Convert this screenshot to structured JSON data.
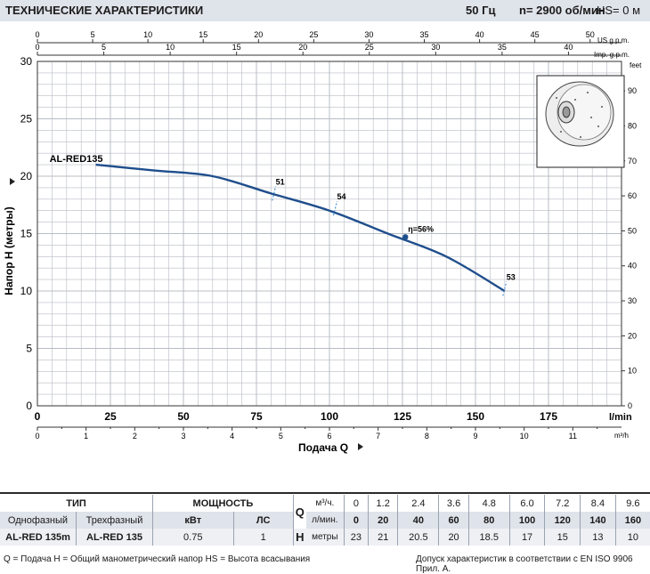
{
  "header": {
    "title": "ТЕХНИЧЕСКИЕ ХАРАКТЕРИСТИКИ",
    "freq": "50 Гц",
    "speed": "n= 2900  об/мин",
    "hs": "HS= 0 м"
  },
  "chart_data": {
    "type": "line",
    "ylabel": "Напор H  (метры)",
    "xlabel": "Подача Q",
    "x_unit_main": "l/min",
    "x_unit_m3h": "m³/h",
    "x_unit_usgpm": "US g.p.m.",
    "x_unit_impgpm": "Imp. g.p.m.",
    "y_unit_feet": "feet",
    "xlim": [
      0,
      200
    ],
    "ylim": [
      0,
      30
    ],
    "grid": true,
    "x_ticks_lmin": [
      "0",
      "25",
      "50",
      "75",
      "100",
      "125",
      "150",
      "175"
    ],
    "x_ticks_m3h": [
      "0",
      "1",
      "2",
      "3",
      "4",
      "5",
      "6",
      "7",
      "8",
      "9",
      "10",
      "11"
    ],
    "x_ticks_usgpm": [
      "0",
      "5",
      "10",
      "15",
      "20",
      "25",
      "30",
      "35",
      "40",
      "45",
      "50"
    ],
    "x_ticks_impgpm": [
      "0",
      "5",
      "10",
      "15",
      "20",
      "25",
      "30",
      "35",
      "40"
    ],
    "y_ticks": [
      "0",
      "5",
      "10",
      "15",
      "20",
      "25",
      "30"
    ],
    "y_ticks_feet": [
      "0",
      "10",
      "20",
      "30",
      "40",
      "50",
      "60",
      "70",
      "80",
      "90"
    ],
    "series": [
      {
        "name": "AL-RED135",
        "x": [
          20,
          40,
          60,
          80,
          100,
          120,
          140,
          160
        ],
        "y": [
          21,
          20.5,
          20,
          18.5,
          17,
          15,
          13,
          10
        ]
      }
    ],
    "efficiency_labels": [
      {
        "text": "51",
        "q": 81,
        "h": 18.5
      },
      {
        "text": "54",
        "q": 102,
        "h": 17.2
      },
      {
        "text": "η=56%",
        "q": 126,
        "h": 14.7
      },
      {
        "text": "53",
        "q": 160,
        "h": 10.2
      }
    ],
    "bep": {
      "q": 126,
      "h": 14.7
    }
  },
  "table": {
    "col_type": "ТИП",
    "col_power": "МОЩНОСТЬ",
    "q_symbol": "Q",
    "h_symbol": "H",
    "unit_m3h": "м³/ч.",
    "unit_lmin": "л/мин.",
    "unit_m": "метры",
    "single_phase": "Однофазный",
    "three_phase": "Трехфазный",
    "kw": "кВт",
    "hp": "ЛС",
    "model_1ph": "AL-RED 135m",
    "model_3ph": "AL-RED 135",
    "power_kw": "0.75",
    "power_hp": "1",
    "q_m3h": [
      "0",
      "1.2",
      "2.4",
      "3.6",
      "4.8",
      "6.0",
      "7.2",
      "8.4",
      "9.6"
    ],
    "q_lmin": [
      "0",
      "20",
      "40",
      "60",
      "80",
      "100",
      "120",
      "140",
      "160"
    ],
    "h_m": [
      "23",
      "21",
      "20.5",
      "20",
      "18.5",
      "17",
      "15",
      "13",
      "10"
    ]
  },
  "footer": {
    "legend": "Q = Подача  H = Общий манометрический напор  HS = Высота всасывания",
    "note": "Допуск характеристик в соответствии с EN ISO 9906 Прил. A."
  },
  "colors": {
    "curve": "#1f4e8c",
    "eff_mark": "#2b7fd0",
    "grid": "#b8bcc4",
    "header_bg": "#dfe3ea"
  }
}
